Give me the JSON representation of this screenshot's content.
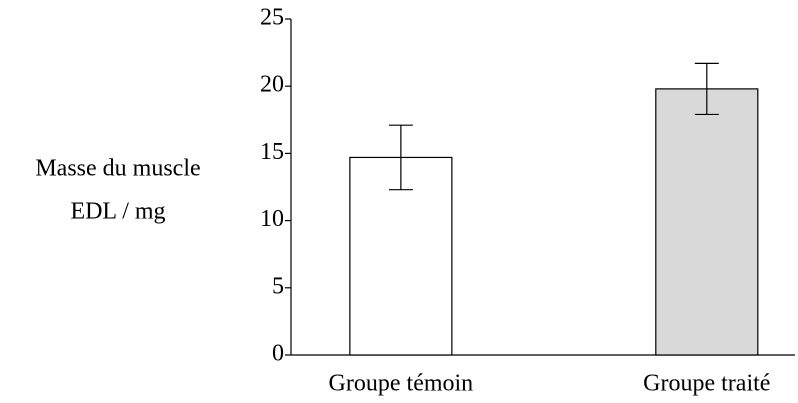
{
  "chart_data": {
    "type": "bar",
    "ylabel": [
      "Masse du muscle",
      "EDL / mg"
    ],
    "categories": [
      "Groupe témoin",
      "Groupe traité"
    ],
    "values": [
      14.7,
      19.8
    ],
    "errors": [
      2.4,
      1.9
    ],
    "colors": [
      "#ffffff",
      "#d9d9d9"
    ],
    "ylim": [
      0,
      25
    ],
    "yticks": [
      0,
      5,
      10,
      15,
      20,
      25
    ]
  }
}
